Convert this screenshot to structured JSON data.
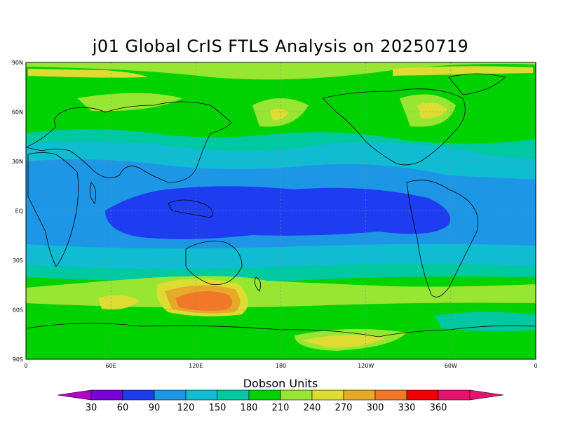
{
  "title": "j01 Global CrIS FTLS Analysis on 20250719",
  "colorbar": {
    "title": "Dobson Units",
    "labels": [
      "30",
      "60",
      "90",
      "120",
      "150",
      "180",
      "210",
      "240",
      "270",
      "300",
      "330",
      "360"
    ],
    "colors": [
      "#7a00d9",
      "#1e3cf0",
      "#1e96e6",
      "#10bcd2",
      "#00c8a0",
      "#00d200",
      "#96e632",
      "#dcdc32",
      "#e6aa28",
      "#f07828",
      "#f00000",
      "#e6146e"
    ],
    "low_color": "#b400c8",
    "high_color": "#e6146e"
  },
  "axes": {
    "lat_labels": [
      "90N",
      "60N",
      "30N",
      "EQ",
      "30S",
      "60S",
      "90S"
    ],
    "lon_labels": [
      "0",
      "60E",
      "120E",
      "180",
      "120W",
      "60W",
      "0"
    ]
  }
}
